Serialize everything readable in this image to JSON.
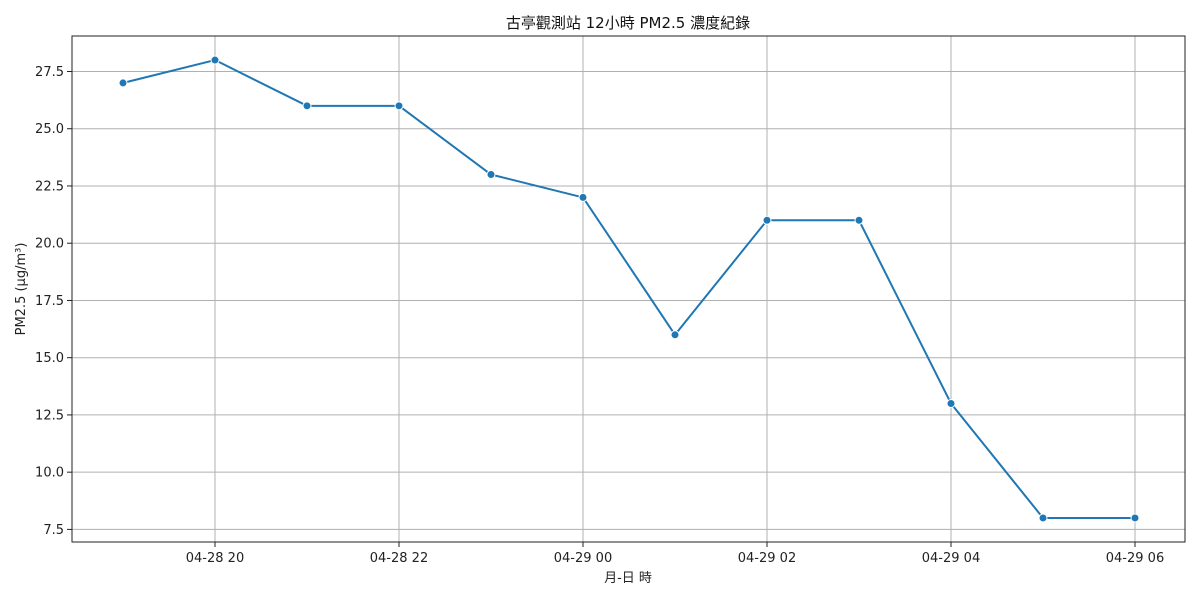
{
  "chart_data": {
    "type": "line",
    "title": "古亭觀測站 12小時 PM2.5 濃度紀錄",
    "xlabel": "月-日 時",
    "ylabel": "PM2.5 (μg/m³)",
    "x": [
      "04-28 19",
      "04-28 20",
      "04-28 21",
      "04-28 22",
      "04-28 23",
      "04-29 00",
      "04-29 01",
      "04-29 02",
      "04-29 03",
      "04-29 04",
      "04-29 05",
      "04-29 06"
    ],
    "x_ticks": [
      "04-28 20",
      "04-28 22",
      "04-29 00",
      "04-29 02",
      "04-29 04",
      "04-29 06"
    ],
    "y_ticks": [
      "7.5",
      "10.0",
      "12.5",
      "15.0",
      "17.5",
      "20.0",
      "22.5",
      "25.0",
      "27.5"
    ],
    "series": [
      {
        "values": [
          27,
          28,
          26,
          26,
          23,
          22,
          16,
          21,
          21,
          13,
          8,
          8
        ]
      }
    ],
    "ylim": [
      6.95,
      29.05
    ],
    "grid": true,
    "marker": "circle",
    "color": "#1f77b4"
  }
}
